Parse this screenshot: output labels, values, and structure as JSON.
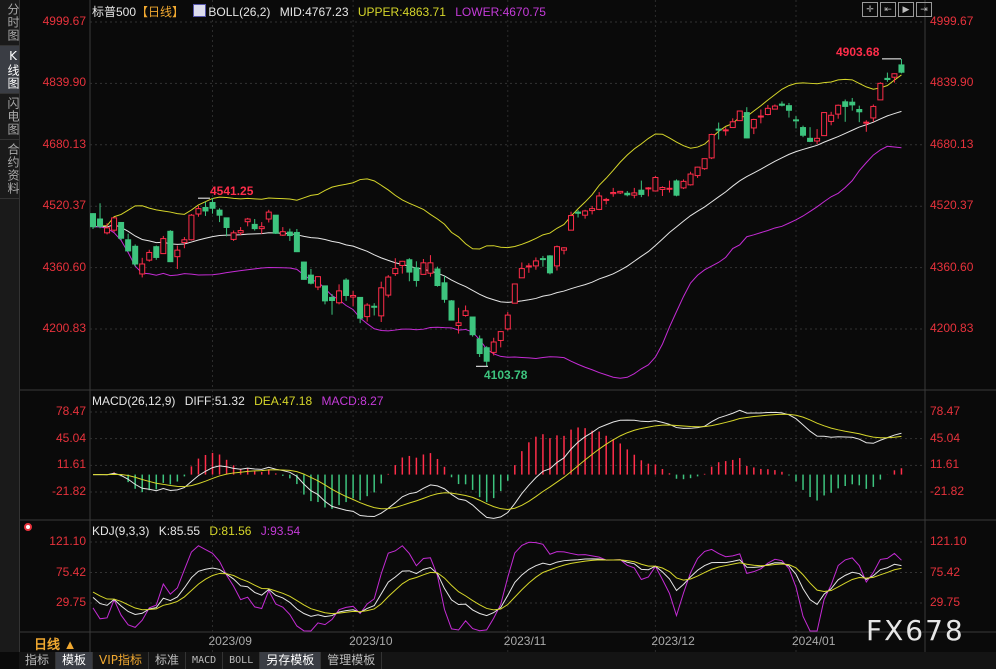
{
  "sidebar": {
    "tabs": [
      {
        "label": "分时图"
      },
      {
        "label": "K线图"
      },
      {
        "label": "闪电图"
      },
      {
        "label": "合约资料"
      }
    ]
  },
  "main": {
    "symbol": "标普500",
    "period": "【日线】",
    "boll": {
      "name": "BOLL(26,2)",
      "mid": "MID:4767.23",
      "upper": "UPPER:4863.71",
      "lower": "LOWER:4670.75"
    },
    "ticks": [
      "4999.67",
      "4839.90",
      "4680.13",
      "4520.37",
      "4360.60",
      "4200.83"
    ],
    "tick_values": [
      4999.67,
      4839.9,
      4680.13,
      4520.37,
      4360.6,
      4200.83
    ],
    "annotations": {
      "high1": "4541.25",
      "low": "4103.78",
      "high2": "4903.68"
    }
  },
  "macd": {
    "name": "MACD(26,12,9)",
    "diff": "DIFF:51.32",
    "dea": "DEA:47.18",
    "macd": "MACD:8.27",
    "ticks": [
      "78.47",
      "45.04",
      "11.61",
      "-21.82"
    ],
    "tick_values": [
      78.47,
      45.04,
      11.61,
      -21.82
    ]
  },
  "kdj": {
    "name": "KDJ(9,3,3)",
    "k": "K:85.55",
    "d": "D:81.56",
    "j": "J:93.54",
    "ticks": [
      "121.10",
      "75.42",
      "29.75"
    ],
    "tick_values": [
      121.1,
      75.42,
      29.75
    ]
  },
  "dates": {
    "period_label": "日线 ▲",
    "months": [
      {
        "label": "2023/09",
        "index": 17
      },
      {
        "label": "2023/10",
        "index": 37
      },
      {
        "label": "2023/11",
        "index": 59
      },
      {
        "label": "2023/12",
        "index": 80
      },
      {
        "label": "2024/01",
        "index": 100
      }
    ]
  },
  "bottom_tabs": [
    {
      "label": "指标"
    },
    {
      "label": "模板"
    },
    {
      "label": "VIP指标"
    },
    {
      "label": "标准"
    },
    {
      "label": "MACD"
    },
    {
      "label": "BOLL"
    },
    {
      "label": "另存模板"
    },
    {
      "label": "管理模板"
    }
  ],
  "toolbar": [
    {
      "icon": "crosshair-icon",
      "glyph": "✛"
    },
    {
      "icon": "scroll-left-icon",
      "glyph": "⇤"
    },
    {
      "icon": "play-icon",
      "glyph": "▶"
    },
    {
      "icon": "scroll-right-icon",
      "glyph": "⇥"
    }
  ],
  "watermark": "FX678",
  "colors": {
    "up": "#ff2d4a",
    "down": "#3dc47e",
    "mid": "#e6e6e6",
    "upper": "#d6d62a",
    "lower": "#c42bd4",
    "tick": "#e8323c"
  },
  "chart_data": {
    "type": "candlestick",
    "fields": [
      "open",
      "high",
      "low",
      "close"
    ],
    "candles": [
      [
        4501,
        4502,
        4461,
        4467
      ],
      [
        4487,
        4528,
        4463,
        4468
      ],
      [
        4451,
        4476,
        4447,
        4464
      ],
      [
        4458,
        4490,
        4453,
        4490
      ],
      [
        4478,
        4478,
        4432,
        4437
      ],
      [
        4433,
        4449,
        4403,
        4404
      ],
      [
        4416,
        4421,
        4364,
        4370
      ],
      [
        4344,
        4386,
        4335,
        4370
      ],
      [
        4380,
        4407,
        4376,
        4400
      ],
      [
        4415,
        4418,
        4381,
        4387
      ],
      [
        4397,
        4443,
        4397,
        4436
      ],
      [
        4455,
        4458,
        4375,
        4376
      ],
      [
        4389,
        4418,
        4357,
        4406
      ],
      [
        4426,
        4440,
        4411,
        4433
      ],
      [
        4433,
        4500,
        4431,
        4497
      ],
      [
        4500,
        4521,
        4493,
        4514
      ],
      [
        4517,
        4532,
        4495,
        4508
      ],
      [
        4530,
        4541.25,
        4501,
        4515
      ],
      [
        4510,
        4515,
        4479,
        4497
      ],
      [
        4490,
        4490,
        4442,
        4465
      ],
      [
        4434,
        4457,
        4430,
        4451
      ],
      [
        4451,
        4466,
        4445,
        4457
      ],
      [
        4480,
        4490,
        4468,
        4487
      ],
      [
        4473,
        4487,
        4457,
        4462
      ],
      [
        4462,
        4479,
        4448,
        4467
      ],
      [
        4487,
        4511,
        4478,
        4505
      ],
      [
        4497,
        4497,
        4448,
        4450
      ],
      [
        4445,
        4466,
        4443,
        4454
      ],
      [
        4453,
        4462,
        4430,
        4444
      ],
      [
        4452,
        4461,
        4401,
        4402
      ],
      [
        4375,
        4376,
        4329,
        4330
      ],
      [
        4341,
        4357,
        4317,
        4320
      ],
      [
        4310,
        4338,
        4302,
        4337
      ],
      [
        4313,
        4313,
        4265,
        4274
      ],
      [
        4283,
        4292,
        4238,
        4275
      ],
      [
        4269,
        4317,
        4265,
        4300
      ],
      [
        4328,
        4333,
        4274,
        4288
      ],
      [
        4284,
        4300,
        4260,
        4288
      ],
      [
        4283,
        4284,
        4216,
        4229
      ],
      [
        4233,
        4268,
        4220,
        4263
      ],
      [
        4260,
        4268,
        4236,
        4258
      ],
      [
        4235,
        4324,
        4219,
        4308
      ],
      [
        4289,
        4341,
        4283,
        4336
      ],
      [
        4345,
        4385,
        4339,
        4358
      ],
      [
        4366,
        4378,
        4345,
        4377
      ],
      [
        4381,
        4385,
        4325,
        4349
      ],
      [
        4360,
        4377,
        4311,
        4327
      ],
      [
        4343,
        4383,
        4343,
        4373
      ],
      [
        4346,
        4393,
        4337,
        4373
      ],
      [
        4357,
        4363,
        4311,
        4314
      ],
      [
        4321,
        4339,
        4269,
        4278
      ],
      [
        4274,
        4276,
        4223,
        4224
      ],
      [
        4210,
        4256,
        4189,
        4217
      ],
      [
        4236,
        4262,
        4233,
        4248
      ],
      [
        4232,
        4232,
        4181,
        4186
      ],
      [
        4175,
        4184,
        4128,
        4137
      ],
      [
        4152,
        4156,
        4103.78,
        4117
      ],
      [
        4140,
        4178,
        4132,
        4167
      ],
      [
        4171,
        4195,
        4153,
        4194
      ],
      [
        4201,
        4245,
        4197,
        4237
      ],
      [
        4268,
        4319,
        4268,
        4318
      ],
      [
        4334,
        4374,
        4334,
        4358
      ],
      [
        4364,
        4372,
        4347,
        4365
      ],
      [
        4365,
        4387,
        4355,
        4378
      ],
      [
        4384,
        4391,
        4363,
        4383
      ],
      [
        4391,
        4393,
        4343,
        4347
      ],
      [
        4365,
        4418,
        4353,
        4415
      ],
      [
        4406,
        4414,
        4395,
        4412
      ],
      [
        4458,
        4506,
        4458,
        4496
      ],
      [
        4505,
        4510,
        4491,
        4502
      ],
      [
        4497,
        4511,
        4488,
        4508
      ],
      [
        4509,
        4521,
        4499,
        4514
      ],
      [
        4512,
        4557,
        4510,
        4547
      ],
      [
        4538,
        4542,
        4525,
        4538
      ],
      [
        4553,
        4568,
        4545,
        4556
      ],
      [
        4555,
        4560,
        4552,
        4559
      ],
      [
        4554,
        4560,
        4546,
        4550
      ],
      [
        4549,
        4568,
        4541,
        4555
      ],
      [
        4562,
        4587,
        4544,
        4551
      ],
      [
        4568,
        4570,
        4546,
        4568
      ],
      [
        4560,
        4599,
        4559,
        4595
      ],
      [
        4564,
        4572,
        4547,
        4569
      ],
      [
        4565,
        4587,
        4556,
        4567
      ],
      [
        4586,
        4590,
        4546,
        4549
      ],
      [
        4568,
        4590,
        4565,
        4585
      ],
      [
        4576,
        4610,
        4574,
        4604
      ],
      [
        4600,
        4623,
        4594,
        4622
      ],
      [
        4618,
        4644,
        4615,
        4644
      ],
      [
        4646,
        4709,
        4643,
        4707
      ],
      [
        4721,
        4738,
        4694,
        4720
      ],
      [
        4719,
        4726,
        4704,
        4719
      ],
      [
        4725,
        4749,
        4725,
        4740
      ],
      [
        4743,
        4769,
        4743,
        4768
      ],
      [
        4764,
        4778,
        4697,
        4698
      ],
      [
        4724,
        4748,
        4708,
        4746
      ],
      [
        4753,
        4772,
        4736,
        4755
      ],
      [
        4759,
        4784,
        4757,
        4775
      ],
      [
        4773,
        4785,
        4772,
        4781
      ],
      [
        4786,
        4793,
        4780,
        4783
      ],
      [
        4782,
        4789,
        4751,
        4770
      ],
      [
        4745,
        4755,
        4723,
        4743
      ],
      [
        4725,
        4730,
        4700,
        4705
      ],
      [
        4697,
        4726,
        4687,
        4689
      ],
      [
        4690,
        4721,
        4682,
        4697
      ],
      [
        4704,
        4764,
        4704,
        4764
      ],
      [
        4741,
        4766,
        4731,
        4757
      ],
      [
        4760,
        4785,
        4748,
        4783
      ],
      [
        4792,
        4798,
        4740,
        4780
      ],
      [
        4791,
        4802,
        4769,
        4784
      ],
      [
        4772,
        4782,
        4739,
        4766
      ],
      [
        4739,
        4744,
        4714,
        4739
      ],
      [
        4750,
        4785,
        4740,
        4780
      ],
      [
        4797,
        4843,
        4797,
        4840
      ],
      [
        4853,
        4868,
        4844,
        4850
      ],
      [
        4856,
        4866,
        4842,
        4865
      ],
      [
        4888,
        4903.68,
        4866,
        4869
      ]
    ],
    "ylim": [
      4103.78,
      4999.67
    ],
    "indicators": [
      "BOLL(26,2)",
      "MACD(26,12,9)",
      "KDJ(9,3,3)"
    ]
  }
}
